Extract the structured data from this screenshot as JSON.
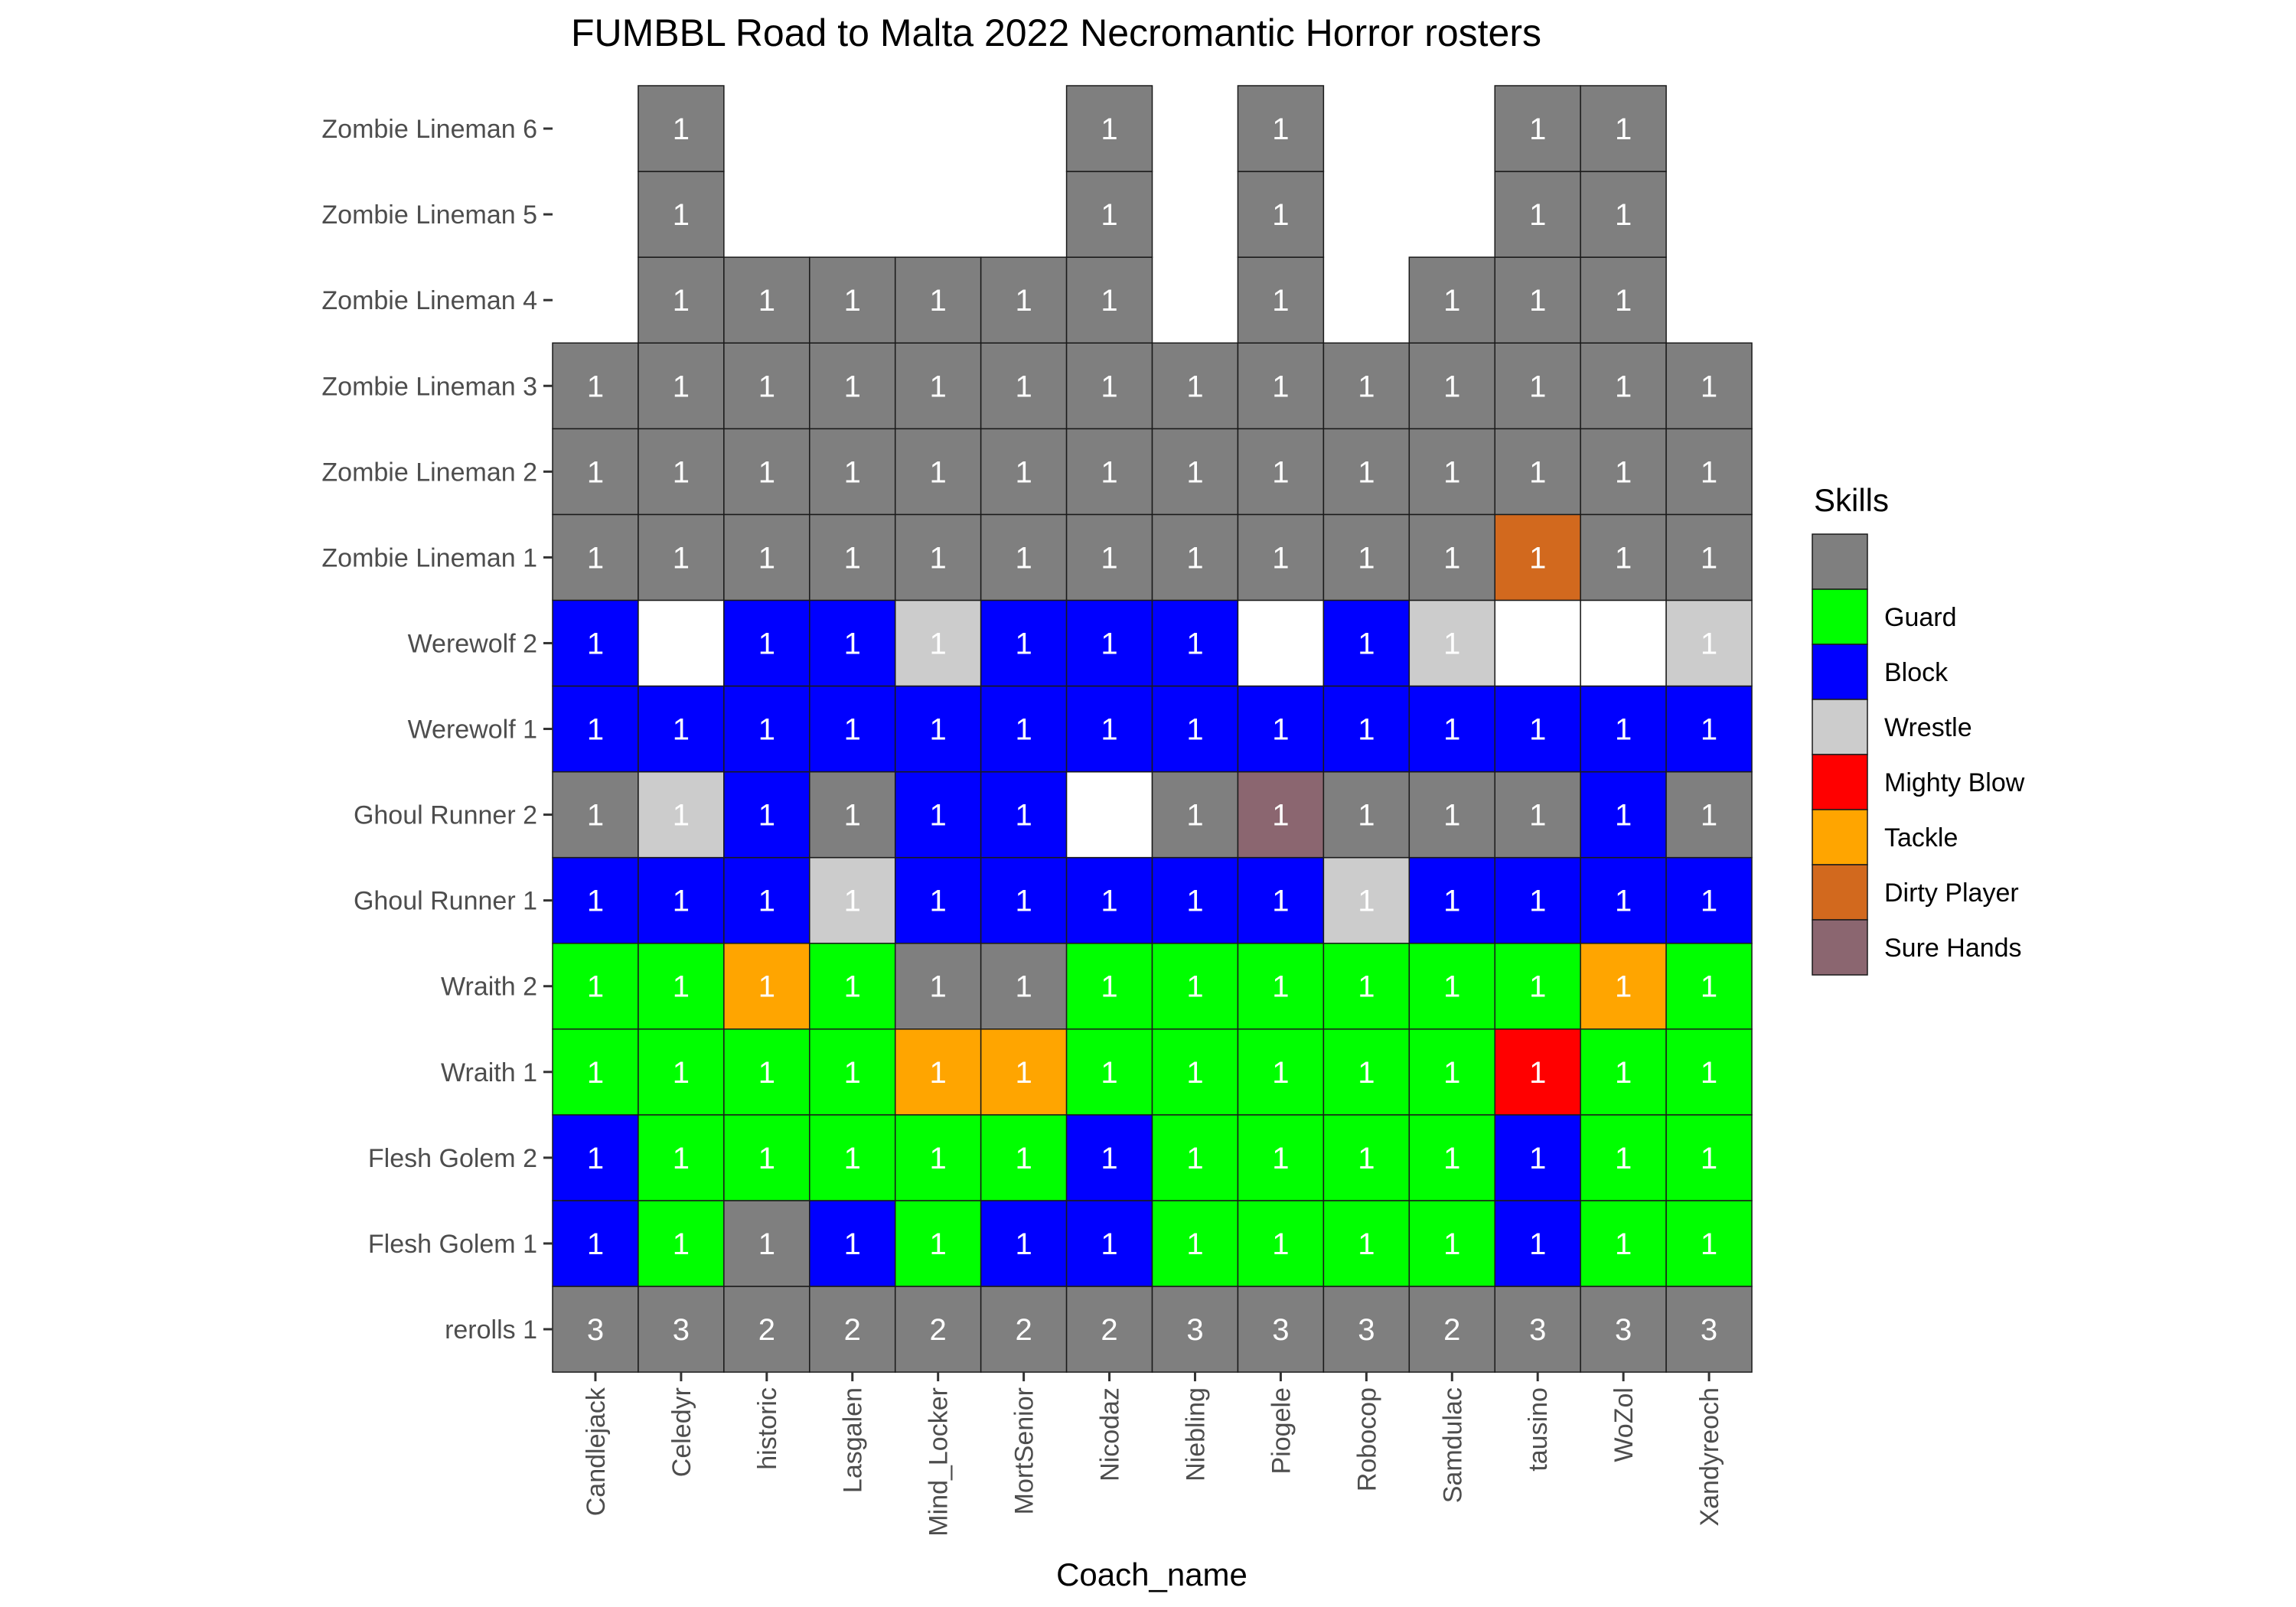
{
  "chart_data": {
    "type": "heatmap",
    "title": "FUMBBL Road to Malta 2022 Necromantic Horror rosters",
    "xlabel": "Coach_name",
    "ylabel": "",
    "x": [
      "Candlejack",
      "Celedyr",
      "historic",
      "Lasgalen",
      "Mind_Locker",
      "MortSenior",
      "Nicodaz",
      "Niebling",
      "Piogele",
      "Robocop",
      "Samdulac",
      "tausino",
      "WoZol",
      "Xandyreoch"
    ],
    "y": [
      "rerolls 1",
      "Flesh Golem 1",
      "Flesh Golem 2",
      "Wraith 1",
      "Wraith 2",
      "Ghoul Runner 1",
      "Ghoul Runner 2",
      "Werewolf 1",
      "Werewolf 2",
      "Zombie Lineman 1",
      "Zombie Lineman 2",
      "Zombie Lineman 3",
      "Zombie Lineman 4",
      "Zombie Lineman 5",
      "Zombie Lineman 6"
    ],
    "legend": {
      "title": "Skills",
      "position": "right",
      "entries": [
        {
          "key": "none",
          "label": "",
          "color": "#7f7f7f"
        },
        {
          "key": "guard",
          "label": "Guard",
          "color": "#00ff00"
        },
        {
          "key": "block",
          "label": "Block",
          "color": "#0000ff"
        },
        {
          "key": "wrestle",
          "label": "Wrestle",
          "color": "#cccccc"
        },
        {
          "key": "mighty_blow",
          "label": "Mighty Blow",
          "color": "#ff0000"
        },
        {
          "key": "tackle",
          "label": "Tackle",
          "color": "#ffa500"
        },
        {
          "key": "dirty_player",
          "label": "Dirty Player",
          "color": "#d2691e"
        },
        {
          "key": "sure_hands",
          "label": "Sure Hands",
          "color": "#8b6670"
        }
      ]
    },
    "blank_color": "#ffffff",
    "grid": false,
    "rows": [
      {
        "y": "rerolls 1",
        "cells": [
          {
            "s": "none",
            "v": 3
          },
          {
            "s": "none",
            "v": 3
          },
          {
            "s": "none",
            "v": 2
          },
          {
            "s": "none",
            "v": 2
          },
          {
            "s": "none",
            "v": 2
          },
          {
            "s": "none",
            "v": 2
          },
          {
            "s": "none",
            "v": 2
          },
          {
            "s": "none",
            "v": 3
          },
          {
            "s": "none",
            "v": 3
          },
          {
            "s": "none",
            "v": 3
          },
          {
            "s": "none",
            "v": 2
          },
          {
            "s": "none",
            "v": 3
          },
          {
            "s": "none",
            "v": 3
          },
          {
            "s": "none",
            "v": 3
          }
        ]
      },
      {
        "y": "Flesh Golem 1",
        "cells": [
          {
            "s": "block",
            "v": 1
          },
          {
            "s": "guard",
            "v": 1
          },
          {
            "s": "none",
            "v": 1
          },
          {
            "s": "block",
            "v": 1
          },
          {
            "s": "guard",
            "v": 1
          },
          {
            "s": "block",
            "v": 1
          },
          {
            "s": "block",
            "v": 1
          },
          {
            "s": "guard",
            "v": 1
          },
          {
            "s": "guard",
            "v": 1
          },
          {
            "s": "guard",
            "v": 1
          },
          {
            "s": "guard",
            "v": 1
          },
          {
            "s": "block",
            "v": 1
          },
          {
            "s": "guard",
            "v": 1
          },
          {
            "s": "guard",
            "v": 1
          }
        ]
      },
      {
        "y": "Flesh Golem 2",
        "cells": [
          {
            "s": "block",
            "v": 1
          },
          {
            "s": "guard",
            "v": 1
          },
          {
            "s": "guard",
            "v": 1
          },
          {
            "s": "guard",
            "v": 1
          },
          {
            "s": "guard",
            "v": 1
          },
          {
            "s": "guard",
            "v": 1
          },
          {
            "s": "block",
            "v": 1
          },
          {
            "s": "guard",
            "v": 1
          },
          {
            "s": "guard",
            "v": 1
          },
          {
            "s": "guard",
            "v": 1
          },
          {
            "s": "guard",
            "v": 1
          },
          {
            "s": "block",
            "v": 1
          },
          {
            "s": "guard",
            "v": 1
          },
          {
            "s": "guard",
            "v": 1
          }
        ]
      },
      {
        "y": "Wraith 1",
        "cells": [
          {
            "s": "guard",
            "v": 1
          },
          {
            "s": "guard",
            "v": 1
          },
          {
            "s": "guard",
            "v": 1
          },
          {
            "s": "guard",
            "v": 1
          },
          {
            "s": "tackle",
            "v": 1
          },
          {
            "s": "tackle",
            "v": 1
          },
          {
            "s": "guard",
            "v": 1
          },
          {
            "s": "guard",
            "v": 1
          },
          {
            "s": "guard",
            "v": 1
          },
          {
            "s": "guard",
            "v": 1
          },
          {
            "s": "guard",
            "v": 1
          },
          {
            "s": "mighty_blow",
            "v": 1
          },
          {
            "s": "guard",
            "v": 1
          },
          {
            "s": "guard",
            "v": 1
          }
        ]
      },
      {
        "y": "Wraith 2",
        "cells": [
          {
            "s": "guard",
            "v": 1
          },
          {
            "s": "guard",
            "v": 1
          },
          {
            "s": "tackle",
            "v": 1
          },
          {
            "s": "guard",
            "v": 1
          },
          {
            "s": "none",
            "v": 1
          },
          {
            "s": "none",
            "v": 1
          },
          {
            "s": "guard",
            "v": 1
          },
          {
            "s": "guard",
            "v": 1
          },
          {
            "s": "guard",
            "v": 1
          },
          {
            "s": "guard",
            "v": 1
          },
          {
            "s": "guard",
            "v": 1
          },
          {
            "s": "guard",
            "v": 1
          },
          {
            "s": "tackle",
            "v": 1
          },
          {
            "s": "guard",
            "v": 1
          }
        ]
      },
      {
        "y": "Ghoul Runner 1",
        "cells": [
          {
            "s": "block",
            "v": 1
          },
          {
            "s": "block",
            "v": 1
          },
          {
            "s": "block",
            "v": 1
          },
          {
            "s": "wrestle",
            "v": 1
          },
          {
            "s": "block",
            "v": 1
          },
          {
            "s": "block",
            "v": 1
          },
          {
            "s": "block",
            "v": 1
          },
          {
            "s": "block",
            "v": 1
          },
          {
            "s": "block",
            "v": 1
          },
          {
            "s": "wrestle",
            "v": 1
          },
          {
            "s": "block",
            "v": 1
          },
          {
            "s": "block",
            "v": 1
          },
          {
            "s": "block",
            "v": 1
          },
          {
            "s": "block",
            "v": 1
          }
        ]
      },
      {
        "y": "Ghoul Runner 2",
        "cells": [
          {
            "s": "none",
            "v": 1
          },
          {
            "s": "wrestle",
            "v": 1
          },
          {
            "s": "block",
            "v": 1
          },
          {
            "s": "none",
            "v": 1
          },
          {
            "s": "block",
            "v": 1
          },
          {
            "s": "block",
            "v": 1
          },
          {
            "s": "blank",
            "v": null
          },
          {
            "s": "none",
            "v": 1
          },
          {
            "s": "sure_hands",
            "v": 1
          },
          {
            "s": "none",
            "v": 1
          },
          {
            "s": "none",
            "v": 1
          },
          {
            "s": "none",
            "v": 1
          },
          {
            "s": "block",
            "v": 1
          },
          {
            "s": "none",
            "v": 1
          }
        ]
      },
      {
        "y": "Werewolf 1",
        "cells": [
          {
            "s": "block",
            "v": 1
          },
          {
            "s": "block",
            "v": 1
          },
          {
            "s": "block",
            "v": 1
          },
          {
            "s": "block",
            "v": 1
          },
          {
            "s": "block",
            "v": 1
          },
          {
            "s": "block",
            "v": 1
          },
          {
            "s": "block",
            "v": 1
          },
          {
            "s": "block",
            "v": 1
          },
          {
            "s": "block",
            "v": 1
          },
          {
            "s": "block",
            "v": 1
          },
          {
            "s": "block",
            "v": 1
          },
          {
            "s": "block",
            "v": 1
          },
          {
            "s": "block",
            "v": 1
          },
          {
            "s": "block",
            "v": 1
          }
        ]
      },
      {
        "y": "Werewolf 2",
        "cells": [
          {
            "s": "block",
            "v": 1
          },
          {
            "s": "blank",
            "v": null
          },
          {
            "s": "block",
            "v": 1
          },
          {
            "s": "block",
            "v": 1
          },
          {
            "s": "wrestle",
            "v": 1
          },
          {
            "s": "block",
            "v": 1
          },
          {
            "s": "block",
            "v": 1
          },
          {
            "s": "block",
            "v": 1
          },
          {
            "s": "blank",
            "v": null
          },
          {
            "s": "block",
            "v": 1
          },
          {
            "s": "wrestle",
            "v": 1
          },
          {
            "s": "blank",
            "v": null
          },
          {
            "s": "blank",
            "v": null
          },
          {
            "s": "wrestle",
            "v": 1
          }
        ]
      },
      {
        "y": "Zombie Lineman 1",
        "cells": [
          {
            "s": "none",
            "v": 1
          },
          {
            "s": "none",
            "v": 1
          },
          {
            "s": "none",
            "v": 1
          },
          {
            "s": "none",
            "v": 1
          },
          {
            "s": "none",
            "v": 1
          },
          {
            "s": "none",
            "v": 1
          },
          {
            "s": "none",
            "v": 1
          },
          {
            "s": "none",
            "v": 1
          },
          {
            "s": "none",
            "v": 1
          },
          {
            "s": "none",
            "v": 1
          },
          {
            "s": "none",
            "v": 1
          },
          {
            "s": "dirty_player",
            "v": 1
          },
          {
            "s": "none",
            "v": 1
          },
          {
            "s": "none",
            "v": 1
          }
        ]
      },
      {
        "y": "Zombie Lineman 2",
        "cells": [
          {
            "s": "none",
            "v": 1
          },
          {
            "s": "none",
            "v": 1
          },
          {
            "s": "none",
            "v": 1
          },
          {
            "s": "none",
            "v": 1
          },
          {
            "s": "none",
            "v": 1
          },
          {
            "s": "none",
            "v": 1
          },
          {
            "s": "none",
            "v": 1
          },
          {
            "s": "none",
            "v": 1
          },
          {
            "s": "none",
            "v": 1
          },
          {
            "s": "none",
            "v": 1
          },
          {
            "s": "none",
            "v": 1
          },
          {
            "s": "none",
            "v": 1
          },
          {
            "s": "none",
            "v": 1
          },
          {
            "s": "none",
            "v": 1
          }
        ]
      },
      {
        "y": "Zombie Lineman 3",
        "cells": [
          {
            "s": "none",
            "v": 1
          },
          {
            "s": "none",
            "v": 1
          },
          {
            "s": "none",
            "v": 1
          },
          {
            "s": "none",
            "v": 1
          },
          {
            "s": "none",
            "v": 1
          },
          {
            "s": "none",
            "v": 1
          },
          {
            "s": "none",
            "v": 1
          },
          {
            "s": "none",
            "v": 1
          },
          {
            "s": "none",
            "v": 1
          },
          {
            "s": "none",
            "v": 1
          },
          {
            "s": "none",
            "v": 1
          },
          {
            "s": "none",
            "v": 1
          },
          {
            "s": "none",
            "v": 1
          },
          {
            "s": "none",
            "v": 1
          }
        ]
      },
      {
        "y": "Zombie Lineman 4",
        "cells": [
          null,
          {
            "s": "none",
            "v": 1
          },
          {
            "s": "none",
            "v": 1
          },
          {
            "s": "none",
            "v": 1
          },
          {
            "s": "none",
            "v": 1
          },
          {
            "s": "none",
            "v": 1
          },
          {
            "s": "none",
            "v": 1
          },
          null,
          {
            "s": "none",
            "v": 1
          },
          null,
          {
            "s": "none",
            "v": 1
          },
          {
            "s": "none",
            "v": 1
          },
          {
            "s": "none",
            "v": 1
          },
          null
        ]
      },
      {
        "y": "Zombie Lineman 5",
        "cells": [
          null,
          {
            "s": "none",
            "v": 1
          },
          null,
          null,
          null,
          null,
          {
            "s": "none",
            "v": 1
          },
          null,
          {
            "s": "none",
            "v": 1
          },
          null,
          null,
          {
            "s": "none",
            "v": 1
          },
          {
            "s": "none",
            "v": 1
          },
          null
        ]
      },
      {
        "y": "Zombie Lineman 6",
        "cells": [
          null,
          {
            "s": "none",
            "v": 1
          },
          null,
          null,
          null,
          null,
          {
            "s": "none",
            "v": 1
          },
          null,
          {
            "s": "none",
            "v": 1
          },
          null,
          null,
          {
            "s": "none",
            "v": 1
          },
          {
            "s": "none",
            "v": 1
          },
          null
        ]
      }
    ]
  }
}
